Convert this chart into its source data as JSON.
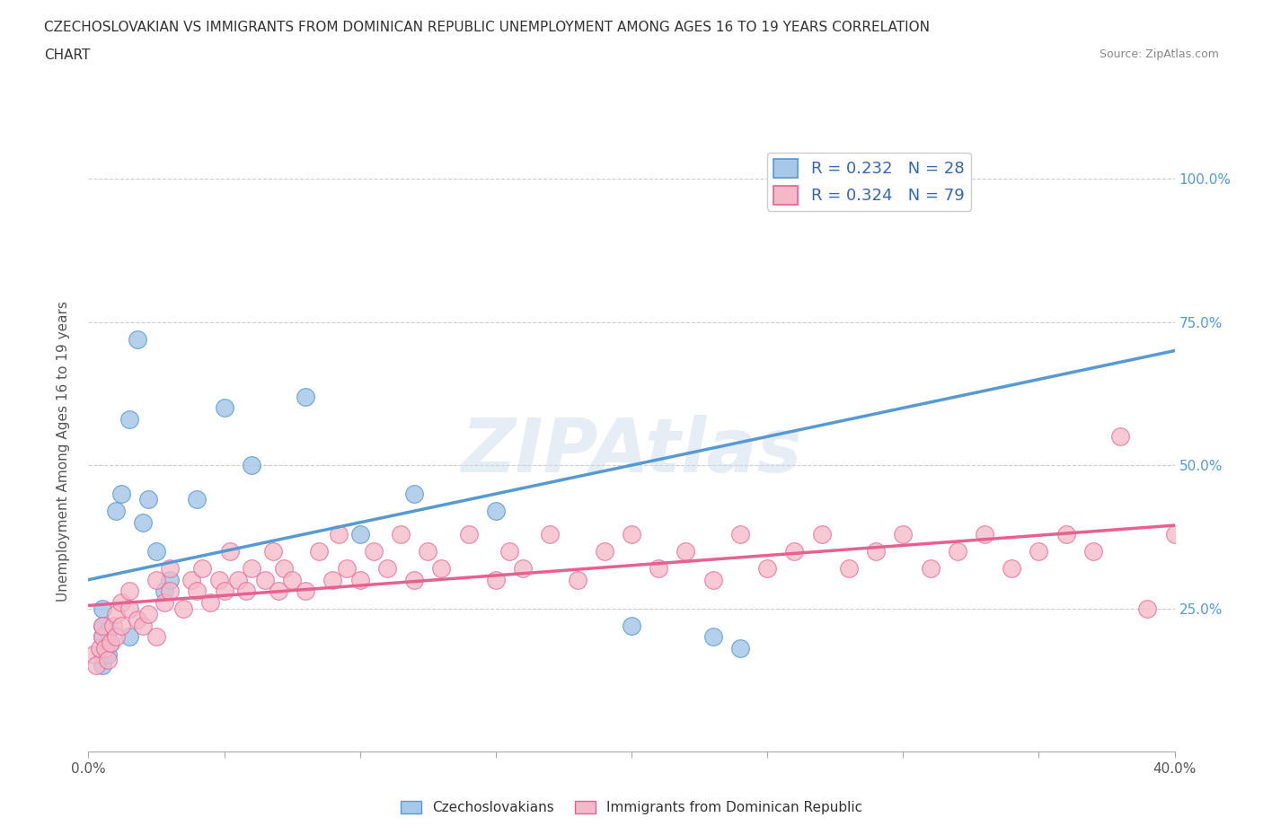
{
  "title_line1": "CZECHOSLOVAKIAN VS IMMIGRANTS FROM DOMINICAN REPUBLIC UNEMPLOYMENT AMONG AGES 16 TO 19 YEARS CORRELATION",
  "title_line2": "CHART",
  "source_text": "Source: ZipAtlas.com",
  "ylabel": "Unemployment Among Ages 16 to 19 years",
  "xlim": [
    0.0,
    0.4
  ],
  "ylim": [
    0.0,
    1.05
  ],
  "xticks": [
    0.0,
    0.05,
    0.1,
    0.15,
    0.2,
    0.25,
    0.3,
    0.35,
    0.4
  ],
  "ytick_positions": [
    0.0,
    0.25,
    0.5,
    0.75,
    1.0
  ],
  "yticklabels_right": [
    "",
    "25.0%",
    "50.0%",
    "75.0%",
    "100.0%"
  ],
  "watermark": "ZIPAtlas",
  "blue_R": 0.232,
  "blue_N": 28,
  "pink_R": 0.324,
  "pink_N": 79,
  "blue_color": "#a8c8e8",
  "pink_color": "#f5b8c8",
  "blue_line_color": "#5599d5",
  "pink_line_color": "#e86090",
  "grid_color": "#cccccc",
  "blue_trend_x0": 0.0,
  "blue_trend_y0": 0.3,
  "blue_trend_x1": 0.4,
  "blue_trend_y1": 0.7,
  "pink_trend_x0": 0.0,
  "pink_trend_y0": 0.255,
  "pink_trend_x1": 0.4,
  "pink_trend_y1": 0.395,
  "blue_scatter_x": [
    0.005,
    0.005,
    0.005,
    0.005,
    0.005,
    0.007,
    0.007,
    0.008,
    0.01,
    0.012,
    0.015,
    0.018,
    0.02,
    0.022,
    0.025,
    0.028,
    0.03,
    0.04,
    0.05,
    0.06,
    0.08,
    0.1,
    0.12,
    0.15,
    0.2,
    0.23,
    0.24,
    0.015
  ],
  "blue_scatter_y": [
    0.15,
    0.17,
    0.2,
    0.22,
    0.25,
    0.17,
    0.21,
    0.19,
    0.42,
    0.45,
    0.58,
    0.72,
    0.4,
    0.44,
    0.35,
    0.28,
    0.3,
    0.44,
    0.6,
    0.5,
    0.62,
    0.38,
    0.45,
    0.42,
    0.22,
    0.2,
    0.18,
    0.2
  ],
  "pink_scatter_x": [
    0.002,
    0.003,
    0.004,
    0.005,
    0.005,
    0.006,
    0.007,
    0.008,
    0.009,
    0.01,
    0.01,
    0.012,
    0.012,
    0.015,
    0.015,
    0.018,
    0.02,
    0.022,
    0.025,
    0.025,
    0.028,
    0.03,
    0.03,
    0.035,
    0.038,
    0.04,
    0.042,
    0.045,
    0.048,
    0.05,
    0.052,
    0.055,
    0.058,
    0.06,
    0.065,
    0.068,
    0.07,
    0.072,
    0.075,
    0.08,
    0.085,
    0.09,
    0.092,
    0.095,
    0.1,
    0.105,
    0.11,
    0.115,
    0.12,
    0.125,
    0.13,
    0.14,
    0.15,
    0.155,
    0.16,
    0.17,
    0.18,
    0.19,
    0.2,
    0.21,
    0.22,
    0.23,
    0.24,
    0.25,
    0.26,
    0.27,
    0.28,
    0.29,
    0.3,
    0.31,
    0.32,
    0.33,
    0.34,
    0.35,
    0.36,
    0.37,
    0.38,
    0.39,
    0.4
  ],
  "pink_scatter_y": [
    0.17,
    0.15,
    0.18,
    0.2,
    0.22,
    0.18,
    0.16,
    0.19,
    0.22,
    0.2,
    0.24,
    0.22,
    0.26,
    0.25,
    0.28,
    0.23,
    0.22,
    0.24,
    0.2,
    0.3,
    0.26,
    0.28,
    0.32,
    0.25,
    0.3,
    0.28,
    0.32,
    0.26,
    0.3,
    0.28,
    0.35,
    0.3,
    0.28,
    0.32,
    0.3,
    0.35,
    0.28,
    0.32,
    0.3,
    0.28,
    0.35,
    0.3,
    0.38,
    0.32,
    0.3,
    0.35,
    0.32,
    0.38,
    0.3,
    0.35,
    0.32,
    0.38,
    0.3,
    0.35,
    0.32,
    0.38,
    0.3,
    0.35,
    0.38,
    0.32,
    0.35,
    0.3,
    0.38,
    0.32,
    0.35,
    0.38,
    0.32,
    0.35,
    0.38,
    0.32,
    0.35,
    0.38,
    0.32,
    0.35,
    0.38,
    0.35,
    0.55,
    0.25,
    0.38
  ]
}
